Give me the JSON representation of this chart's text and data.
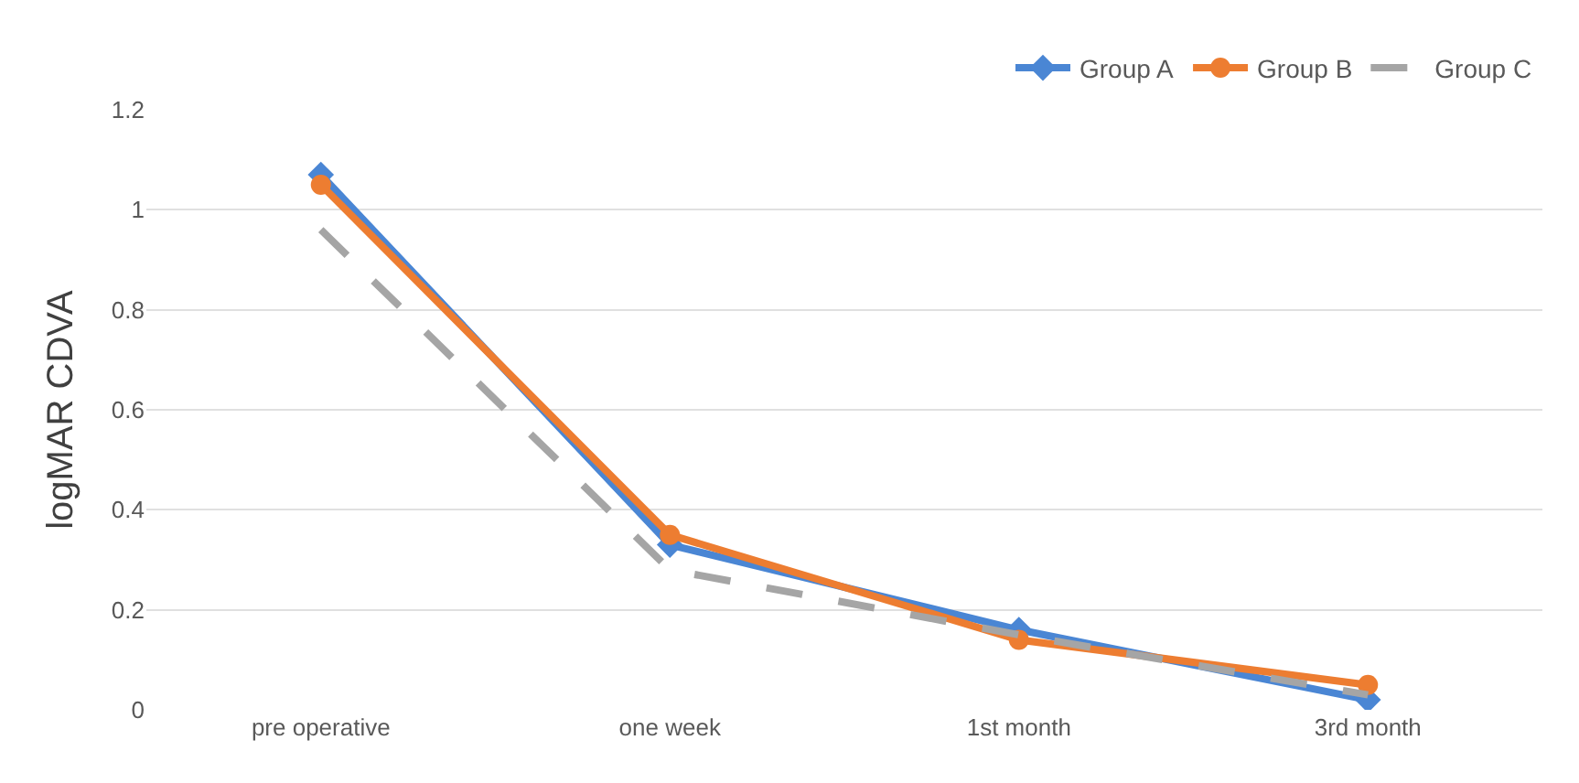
{
  "chart_data": {
    "type": "line",
    "ylabel": "logMAR CDVA",
    "categories": [
      "pre operative",
      "one week",
      "1st month",
      "3rd month"
    ],
    "series": [
      {
        "name": "Group A",
        "color": "#4a86d4",
        "values": [
          1.07,
          0.33,
          0.16,
          0.02
        ],
        "marker": "diamond",
        "line_style": "solid"
      },
      {
        "name": "Group B",
        "color": "#ed7d31",
        "values": [
          1.05,
          0.35,
          0.14,
          0.05
        ],
        "marker": "circle",
        "line_style": "solid"
      },
      {
        "name": "Group C",
        "color": "#a5a5a5",
        "values": [
          0.96,
          0.28,
          0.15,
          0.03
        ],
        "marker": "none",
        "line_style": "dashed"
      }
    ],
    "ylim": [
      0,
      1.2
    ],
    "yticks": [
      0,
      0.2,
      0.4,
      0.6,
      0.8,
      1,
      1.2
    ],
    "grid": "y",
    "legend": "top right"
  }
}
